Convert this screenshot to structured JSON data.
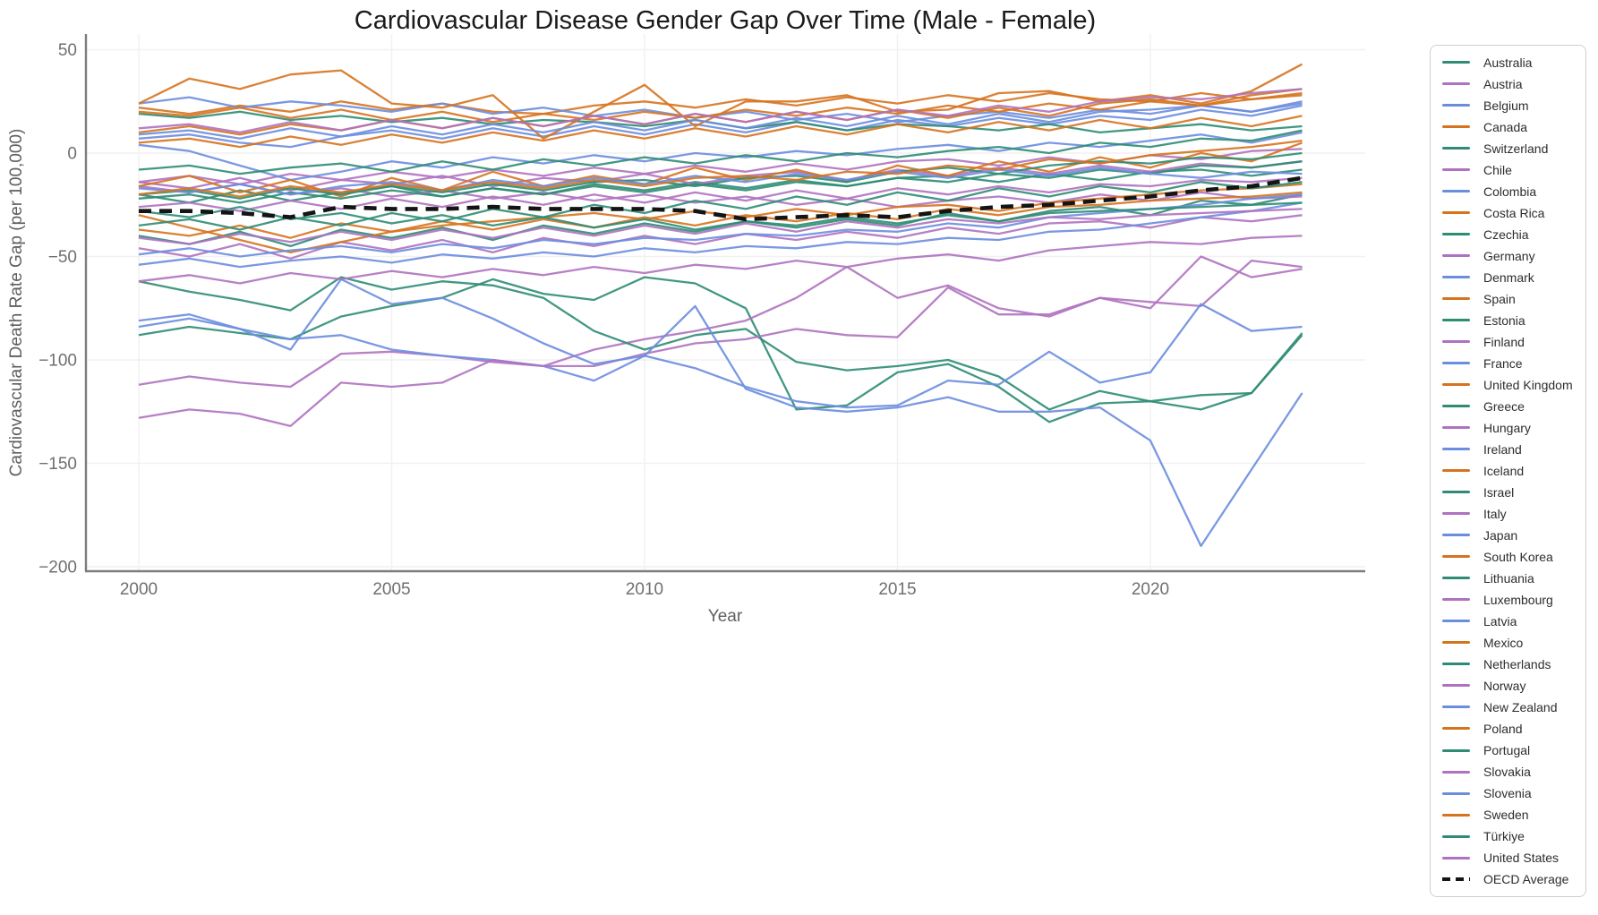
{
  "chart_data": {
    "type": "line",
    "title": "Cardiovascular Disease Gender Gap Over Time (Male - Female)",
    "xlabel": "Year",
    "ylabel": "Cardiovascular Death Rate Gap (per 100,000)",
    "legend_position": "right",
    "grid": true,
    "x": [
      2000,
      2001,
      2002,
      2003,
      2004,
      2005,
      2006,
      2007,
      2008,
      2009,
      2010,
      2011,
      2012,
      2013,
      2014,
      2015,
      2016,
      2017,
      2018,
      2019,
      2020,
      2021,
      2022,
      2023
    ],
    "x_ticks": [
      2000,
      2005,
      2010,
      2015,
      2020
    ],
    "y_ticks": [
      50,
      0,
      -50,
      -100,
      -150,
      -200
    ],
    "ylim": [
      -200,
      55
    ],
    "xlim": [
      1998.95,
      2024.25
    ],
    "colors": {
      "teal": "#2e8c74",
      "purple": "#af72c0",
      "blue": "#6c8ddf",
      "orange": "#d6731f",
      "oecd_black": "#141414"
    },
    "series": [
      {
        "name": "Australia",
        "color": "#2e8c74",
        "dashed": false,
        "values": [
          -20,
          -24,
          -18,
          -23,
          -19,
          -16,
          -21,
          -17,
          -20,
          -15,
          -18,
          -14,
          -17,
          -13,
          -16,
          -12,
          -11,
          -14,
          -10,
          -13,
          -9,
          -8,
          -11,
          -8
        ]
      },
      {
        "name": "Austria",
        "color": "#af72c0",
        "dashed": false,
        "values": [
          -14,
          -17,
          -12,
          -18,
          -13,
          -15,
          -11,
          -16,
          -12,
          -14,
          -10,
          -15,
          -11,
          -9,
          -13,
          -8,
          -11,
          -7,
          -10,
          -6,
          -9,
          -5,
          -7,
          -4
        ]
      },
      {
        "name": "Belgium",
        "color": "#6c8ddf",
        "dashed": false,
        "values": [
          7,
          9,
          5,
          3,
          8,
          11,
          7,
          12,
          8,
          13,
          9,
          14,
          10,
          15,
          11,
          16,
          13,
          17,
          14,
          18,
          16,
          21,
          18,
          23
        ]
      },
      {
        "name": "Canada",
        "color": "#d6731f",
        "dashed": false,
        "values": [
          22,
          19,
          23,
          20,
          25,
          21,
          24,
          20,
          19,
          23,
          25,
          22,
          26,
          23,
          27,
          24,
          28,
          25,
          29,
          26,
          25,
          29,
          26,
          29
        ]
      },
      {
        "name": "Switzerland",
        "color": "#2e8c74",
        "dashed": false,
        "values": [
          19,
          17,
          20,
          16,
          18,
          15,
          17,
          14,
          16,
          15,
          13,
          16,
          12,
          15,
          11,
          14,
          13,
          11,
          14,
          10,
          12,
          14,
          11,
          13
        ]
      },
      {
        "name": "Chile",
        "color": "#af72c0",
        "dashed": false,
        "values": [
          -14,
          -11,
          -15,
          -10,
          -13,
          -9,
          -12,
          -8,
          -11,
          -7,
          -10,
          -6,
          -9,
          -5,
          -8,
          -4,
          -3,
          -6,
          -2,
          -5,
          -1,
          -3,
          1,
          2
        ]
      },
      {
        "name": "Colombia",
        "color": "#6c8ddf",
        "dashed": false,
        "values": [
          24,
          27,
          22,
          25,
          23,
          20,
          24,
          19,
          22,
          18,
          21,
          17,
          20,
          16,
          19,
          15,
          18,
          20,
          17,
          21,
          19,
          23,
          20,
          25
        ]
      },
      {
        "name": "Costa Rica",
        "color": "#d6731f",
        "dashed": false,
        "values": [
          24,
          36,
          31,
          38,
          40,
          24,
          22,
          28,
          7,
          20,
          33,
          13,
          25,
          25,
          28,
          20,
          21,
          29,
          30,
          25,
          28,
          24,
          30,
          43
        ]
      },
      {
        "name": "Czechia",
        "color": "#2e8c74",
        "dashed": false,
        "values": [
          -40,
          -44,
          -38,
          -45,
          -37,
          -41,
          -36,
          -42,
          -35,
          -39,
          -34,
          -38,
          -33,
          -36,
          -32,
          -35,
          -29,
          -33,
          -28,
          -26,
          -30,
          -23,
          -25,
          -20
        ]
      },
      {
        "name": "Germany",
        "color": "#af72c0",
        "dashed": false,
        "values": [
          -16,
          -19,
          -15,
          -20,
          -17,
          -21,
          -18,
          -22,
          -19,
          -23,
          -20,
          -24,
          -21,
          -25,
          -22,
          -26,
          -23,
          -21,
          -24,
          -20,
          -23,
          -19,
          -22,
          -21
        ]
      },
      {
        "name": "Denmark",
        "color": "#6c8ddf",
        "dashed": false,
        "values": [
          4,
          1,
          -6,
          -13,
          -9,
          -4,
          -7,
          -2,
          -5,
          -1,
          -4,
          0,
          -2,
          1,
          -1,
          2,
          4,
          1,
          5,
          3,
          6,
          9,
          5,
          10
        ]
      },
      {
        "name": "Spain",
        "color": "#d6731f",
        "dashed": false,
        "values": [
          5,
          7,
          3,
          8,
          4,
          9,
          5,
          10,
          6,
          11,
          7,
          12,
          8,
          13,
          9,
          14,
          10,
          15,
          11,
          16,
          12,
          17,
          13,
          18
        ]
      },
      {
        "name": "Estonia",
        "color": "#2e8c74",
        "dashed": false,
        "values": [
          -88,
          -84,
          -87,
          -90,
          -79,
          -74,
          -70,
          -61,
          -68,
          -71,
          -60,
          -63,
          -75,
          -124,
          -122,
          -106,
          -102,
          -113,
          -130,
          -121,
          -120,
          -124,
          -116,
          -88
        ]
      },
      {
        "name": "Finland",
        "color": "#af72c0",
        "dashed": false,
        "values": [
          -46,
          -50,
          -44,
          -51,
          -43,
          -47,
          -42,
          -48,
          -41,
          -45,
          -40,
          -44,
          -39,
          -42,
          -38,
          -41,
          -36,
          -39,
          -34,
          -33,
          -36,
          -31,
          -33,
          -30
        ]
      },
      {
        "name": "France",
        "color": "#6c8ddf",
        "dashed": false,
        "values": [
          -54,
          -51,
          -55,
          -52,
          -50,
          -53,
          -49,
          -51,
          -48,
          -50,
          -46,
          -48,
          -45,
          -46,
          -43,
          -44,
          -41,
          -42,
          -38,
          -37,
          -34,
          -31,
          -28,
          -24
        ]
      },
      {
        "name": "United Kingdom",
        "color": "#d6731f",
        "dashed": false,
        "values": [
          -30,
          -36,
          -42,
          -48,
          -43,
          -38,
          -35,
          -33,
          -31,
          -29,
          -32,
          -28,
          -31,
          -27,
          -30,
          -26,
          -25,
          -28,
          -24,
          -22,
          -20,
          -18,
          -17,
          -15
        ]
      },
      {
        "name": "Greece",
        "color": "#2e8c74",
        "dashed": false,
        "values": [
          -8,
          -6,
          -10,
          -7,
          -5,
          -9,
          -4,
          -8,
          -3,
          -6,
          -2,
          -5,
          -1,
          -4,
          0,
          -2,
          1,
          3,
          0,
          5,
          3,
          7,
          6,
          11
        ]
      },
      {
        "name": "Hungary",
        "color": "#af72c0",
        "dashed": false,
        "values": [
          -112,
          -108,
          -111,
          -113,
          -97,
          -96,
          -98,
          -101,
          -103,
          -95,
          -90,
          -86,
          -81,
          -70,
          -55,
          -70,
          -64,
          -75,
          -79,
          -70,
          -72,
          -74,
          -52,
          -55
        ]
      },
      {
        "name": "Ireland",
        "color": "#6c8ddf",
        "dashed": false,
        "values": [
          -49,
          -46,
          -50,
          -47,
          -45,
          -48,
          -44,
          -46,
          -42,
          -44,
          -41,
          -42,
          -39,
          -40,
          -37,
          -38,
          -34,
          -36,
          -31,
          -29,
          -27,
          -25,
          -22,
          -20
        ]
      },
      {
        "name": "Iceland",
        "color": "#d6731f",
        "dashed": false,
        "values": [
          -16,
          -11,
          -19,
          -13,
          -21,
          -12,
          -18,
          -9,
          -16,
          -11,
          -15,
          -7,
          -13,
          -8,
          -14,
          -6,
          -11,
          -4,
          -9,
          -2,
          -7,
          0,
          -4,
          5
        ]
      },
      {
        "name": "Israel",
        "color": "#2e8c74",
        "dashed": false,
        "values": [
          -20,
          -18,
          -22,
          -17,
          -20,
          -16,
          -19,
          -15,
          -18,
          -14,
          -13,
          -16,
          -12,
          -11,
          -14,
          -9,
          -7,
          -10,
          -6,
          -4,
          -5,
          -2,
          -3,
          0
        ]
      },
      {
        "name": "Italy",
        "color": "#af72c0",
        "dashed": false,
        "values": [
          -26,
          -24,
          -28,
          -23,
          -27,
          -22,
          -26,
          -21,
          -25,
          -20,
          -24,
          -19,
          -23,
          -18,
          -22,
          -17,
          -20,
          -16,
          -19,
          -15,
          -16,
          -13,
          -14,
          -12
        ]
      },
      {
        "name": "Japan",
        "color": "#6c8ddf",
        "dashed": false,
        "values": [
          9,
          11,
          7,
          12,
          8,
          13,
          9,
          14,
          10,
          15,
          11,
          16,
          12,
          17,
          13,
          18,
          14,
          19,
          15,
          20,
          21,
          23,
          20,
          24
        ]
      },
      {
        "name": "South Korea",
        "color": "#d6731f",
        "dashed": false,
        "values": [
          20,
          18,
          22,
          17,
          21,
          16,
          20,
          15,
          19,
          16,
          20,
          17,
          21,
          18,
          22,
          19,
          23,
          20,
          24,
          21,
          25,
          23,
          26,
          28
        ]
      },
      {
        "name": "Lithuania",
        "color": "#2e8c74",
        "dashed": false,
        "values": [
          -62,
          -67,
          -71,
          -76,
          -60,
          -66,
          -62,
          -64,
          -70,
          -86,
          -95,
          -88,
          -85,
          -101,
          -105,
          -103,
          -100,
          -108,
          -124,
          -115,
          -120,
          -117,
          -116,
          -87
        ]
      },
      {
        "name": "Luxembourg",
        "color": "#af72c0",
        "dashed": false,
        "values": [
          -62,
          -59,
          -63,
          -58,
          -61,
          -57,
          -60,
          -56,
          -59,
          -55,
          -58,
          -54,
          -56,
          -52,
          -55,
          -51,
          -49,
          -52,
          -47,
          -45,
          -43,
          -44,
          -41,
          -40
        ]
      },
      {
        "name": "Latvia",
        "color": "#6c8ddf",
        "dashed": false,
        "values": [
          -84,
          -80,
          -85,
          -90,
          -88,
          -95,
          -98,
          -100,
          -103,
          -110,
          -98,
          -104,
          -113,
          -120,
          -123,
          -122,
          -110,
          -112,
          -96,
          -111,
          -106,
          -73,
          -86,
          -84
        ]
      },
      {
        "name": "Mexico",
        "color": "#d6731f",
        "dashed": false,
        "values": [
          10,
          13,
          9,
          14,
          11,
          16,
          12,
          17,
          13,
          18,
          14,
          19,
          15,
          20,
          16,
          21,
          17,
          22,
          18,
          24,
          26,
          23,
          28,
          31
        ]
      },
      {
        "name": "Netherlands",
        "color": "#2e8c74",
        "dashed": false,
        "values": [
          -22,
          -20,
          -24,
          -19,
          -22,
          -18,
          -21,
          -17,
          -20,
          -16,
          -19,
          -15,
          -18,
          -14,
          -16,
          -12,
          -14,
          -10,
          -12,
          -8,
          -10,
          -6,
          -7,
          -4
        ]
      },
      {
        "name": "Norway",
        "color": "#af72c0",
        "dashed": false,
        "values": [
          -41,
          -44,
          -39,
          -43,
          -38,
          -42,
          -37,
          -41,
          -36,
          -40,
          -35,
          -39,
          -34,
          -38,
          -33,
          -36,
          -32,
          -34,
          -31,
          -32,
          -30,
          -29,
          -28,
          -27
        ]
      },
      {
        "name": "New Zealand",
        "color": "#6c8ddf",
        "dashed": false,
        "values": [
          -17,
          -19,
          -15,
          -20,
          -16,
          -14,
          -18,
          -13,
          -16,
          -12,
          -15,
          -11,
          -14,
          -10,
          -13,
          -9,
          -12,
          -8,
          -11,
          -7,
          -10,
          -12,
          -9,
          -10
        ]
      },
      {
        "name": "Poland",
        "color": "#d6731f",
        "dashed": false,
        "values": [
          -37,
          -40,
          -35,
          -41,
          -34,
          -38,
          -33,
          -37,
          -32,
          -36,
          -31,
          -35,
          -30,
          -33,
          -29,
          -32,
          -27,
          -30,
          -26,
          -25,
          -23,
          -22,
          -21,
          -19
        ]
      },
      {
        "name": "Portugal",
        "color": "#2e8c74",
        "dashed": false,
        "values": [
          -28,
          -31,
          -26,
          -32,
          -29,
          -34,
          -30,
          -35,
          -31,
          -36,
          -32,
          -37,
          -33,
          -35,
          -31,
          -34,
          -30,
          -33,
          -29,
          -28,
          -27,
          -26,
          -25,
          -24
        ]
      },
      {
        "name": "Slovakia",
        "color": "#af72c0",
        "dashed": false,
        "values": [
          -128,
          -124,
          -126,
          -132,
          -111,
          -113,
          -111,
          -100,
          -103,
          -103,
          -97,
          -92,
          -90,
          -85,
          -88,
          -89,
          -65,
          -78,
          -78,
          -70,
          -75,
          -50,
          -60,
          -56
        ]
      },
      {
        "name": "Slovenia",
        "color": "#6c8ddf",
        "dashed": false,
        "values": [
          -81,
          -78,
          -85,
          -95,
          -61,
          -73,
          -70,
          -80,
          -92,
          -102,
          -98,
          -74,
          -114,
          -123,
          -125,
          -123,
          -118,
          -125,
          -125,
          -123,
          -139,
          -190,
          -153,
          -116
        ]
      },
      {
        "name": "Sweden",
        "color": "#d6731f",
        "dashed": false,
        "values": [
          -20,
          -17,
          -21,
          -16,
          -19,
          -15,
          -18,
          -14,
          -17,
          -13,
          -16,
          -12,
          -11,
          -13,
          -9,
          -10,
          -6,
          -8,
          -3,
          -5,
          -1,
          1,
          3,
          6
        ]
      },
      {
        "name": "Türkiye",
        "color": "#2e8c74",
        "dashed": false,
        "values": [
          -35,
          -32,
          -37,
          -31,
          -35,
          -29,
          -33,
          -27,
          -31,
          -25,
          -29,
          -23,
          -27,
          -21,
          -25,
          -19,
          -23,
          -17,
          -21,
          -16,
          -19,
          -14,
          -17,
          -14
        ]
      },
      {
        "name": "United States",
        "color": "#af72c0",
        "dashed": false,
        "values": [
          12,
          14,
          10,
          15,
          11,
          16,
          12,
          17,
          13,
          18,
          14,
          19,
          15,
          20,
          16,
          21,
          18,
          23,
          20,
          25,
          27,
          26,
          29,
          31
        ]
      },
      {
        "name": "OECD Average",
        "color": "#141414",
        "dashed": true,
        "values": [
          -28,
          -28,
          -29,
          -31,
          -26,
          -27,
          -27,
          -26,
          -27,
          -27,
          -27,
          -28,
          -32,
          -31,
          -30,
          -31,
          -28,
          -26,
          -25,
          -23,
          -21,
          -18,
          -16,
          -12
        ]
      }
    ]
  }
}
